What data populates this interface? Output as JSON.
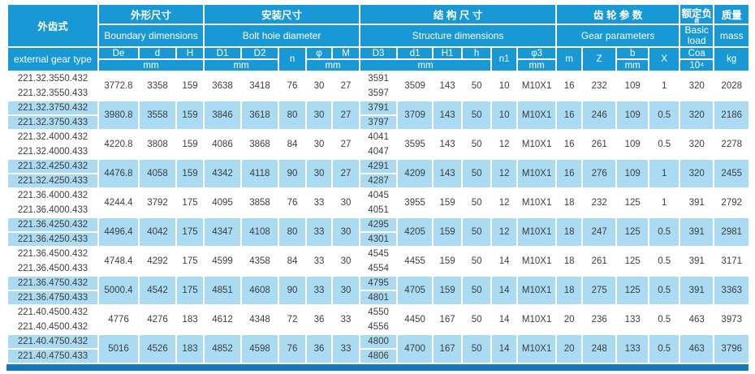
{
  "colors": {
    "header_blue": "#1899d6",
    "row_blue": "#abdbf2",
    "bottom_bar_blue": "#1478bb",
    "data_text": "#3d3d3d"
  },
  "header": {
    "type_zh": "外齿式",
    "type_en": "external gear type",
    "g_boundary_zh": "外形尺寸",
    "g_boundary_en": "Boundary dimensions",
    "g_bolt_zh": "安装尺寸",
    "g_bolt_en": "Bolt hole diameter",
    "g_structure_zh": "结 构 尺 寸",
    "g_structure_en": "Structure dimensions",
    "g_gear_zh": "齿 轮 参 数",
    "g_gear_en": "Gear parameters",
    "g_load_zh": "额定负",
    "g_load_zh2": "荷",
    "g_load_en": "Basic load",
    "g_mass_zh": "质量",
    "g_mass_en": "mass",
    "c_De": "De",
    "c_d": "d",
    "c_H": "H",
    "c_D1": "D1",
    "c_D2": "D2",
    "c_n": "n",
    "c_phi": "φ",
    "c_M": "M",
    "c_D3": "D3",
    "c_d1": "d1",
    "c_H1": "H1",
    "c_h": "h",
    "c_n1": "n1",
    "c_phi3": "φ3",
    "c_m": "m",
    "c_Z": "Z",
    "c_b": "b",
    "c_X": "X",
    "c_Coa": "Coa",
    "c_Coa_unit": "10⁴",
    "c_kg": "kg",
    "unit_mm": "mm"
  },
  "rows": [
    {
      "shaded": false,
      "types": [
        "221.32.3550.432",
        "221.32.3550.433"
      ],
      "De": "3772.8",
      "d": "3358",
      "H": "159",
      "D1": "3638",
      "D2": "3418",
      "n": "76",
      "phi": "30",
      "M": "27",
      "D3": [
        "3591",
        "3597"
      ],
      "d1": "3509",
      "H1": "143",
      "h": "50",
      "n1": "10",
      "phi3": "M10X1",
      "m": "16",
      "Z": "232",
      "b": "109",
      "X": "1",
      "Coa": "320",
      "kg": "2028"
    },
    {
      "shaded": true,
      "types": [
        "221.32.3750.432",
        "221.32.3750.433"
      ],
      "De": "3980.8",
      "d": "3558",
      "H": "159",
      "D1": "3846",
      "D2": "3618",
      "n": "80",
      "phi": "30",
      "M": "27",
      "D3": [
        "3791",
        "3797"
      ],
      "d1": "3709",
      "H1": "143",
      "h": "50",
      "n1": "10",
      "phi3": "M10X1",
      "m": "16",
      "Z": "246",
      "b": "109",
      "X": "0.5",
      "Coa": "320",
      "kg": "2186"
    },
    {
      "shaded": false,
      "types": [
        "221.32.4000.432",
        "221.32.4000.433"
      ],
      "De": "4220.8",
      "d": "3808",
      "H": "159",
      "D1": "4086",
      "D2": "3868",
      "n": "84",
      "phi": "30",
      "M": "27",
      "D3": [
        "4041",
        "4047"
      ],
      "d1": "3595",
      "H1": "143",
      "h": "50",
      "n1": "12",
      "phi3": "M10X1",
      "m": "16",
      "Z": "261",
      "b": "109",
      "X": "0.5",
      "Coa": "320",
      "kg": "2278"
    },
    {
      "shaded": true,
      "types": [
        "221.32.4250.432",
        "221.32.4250.433"
      ],
      "De": "4476.8",
      "d": "4058",
      "H": "159",
      "D1": "4342",
      "D2": "4118",
      "n": "90",
      "phi": "30",
      "M": "27",
      "D3": [
        "4291",
        "4287"
      ],
      "d1": "4209",
      "H1": "143",
      "h": "50",
      "n1": "12",
      "phi3": "M10X1",
      "m": "16",
      "Z": "276",
      "b": "109",
      "X": "1",
      "Coa": "320",
      "kg": "2455"
    },
    {
      "shaded": false,
      "types": [
        "221.36.4000.432",
        "221.36.4000.433"
      ],
      "De": "4244.4",
      "d": "3792",
      "H": "175",
      "D1": "4095",
      "D2": "3858",
      "n": "76",
      "phi": "33",
      "M": "30",
      "D3": [
        "4045",
        "4051"
      ],
      "d1": "3955",
      "H1": "159",
      "h": "50",
      "n1": "12",
      "phi3": "M10X1",
      "m": "18",
      "Z": "232",
      "b": "125",
      "X": "1",
      "Coa": "391",
      "kg": "2792"
    },
    {
      "shaded": true,
      "types": [
        "221.36.4250.432",
        "221.36.4250.433"
      ],
      "De": "4496.4",
      "d": "4042",
      "H": "175",
      "D1": "4347",
      "D2": "4108",
      "n": "80",
      "phi": "33",
      "M": "30",
      "D3": [
        "4295",
        "4301"
      ],
      "d1": "4205",
      "H1": "159",
      "h": "50",
      "n1": "12",
      "phi3": "M10X1",
      "m": "18",
      "Z": "247",
      "b": "125",
      "X": "0.5",
      "Coa": "391",
      "kg": "2981"
    },
    {
      "shaded": false,
      "types": [
        "221.36.4500.432",
        "221.36.4500.433"
      ],
      "De": "4748.4",
      "d": "4292",
      "H": "175",
      "D1": "4599",
      "D2": "4358",
      "n": "84",
      "phi": "33",
      "M": "30",
      "D3": [
        "4545",
        "4554"
      ],
      "d1": "4455",
      "H1": "159",
      "h": "50",
      "n1": "14",
      "phi3": "M10X1",
      "m": "18",
      "Z": "261",
      "b": "125",
      "X": "0.5",
      "Coa": "391",
      "kg": "3171"
    },
    {
      "shaded": true,
      "types": [
        "221.36.4750.432",
        "221.36.4750.433"
      ],
      "De": "5000.4",
      "d": "4542",
      "H": "175",
      "D1": "4851",
      "D2": "4608",
      "n": "90",
      "phi": "33",
      "M": "30",
      "D3": [
        "4795",
        "4801"
      ],
      "d1": "4705",
      "H1": "159",
      "h": "50",
      "n1": "14",
      "phi3": "M10X1",
      "m": "18",
      "Z": "275",
      "b": "125",
      "X": "0.5",
      "Coa": "391",
      "kg": "3363"
    },
    {
      "shaded": false,
      "types": [
        "221.40.4500.432",
        "221.40.4500.432"
      ],
      "De": "4776",
      "d": "4276",
      "H": "183",
      "D1": "4612",
      "D2": "4348",
      "n": "72",
      "phi": "36",
      "M": "33",
      "D3": [
        "4550",
        "4556"
      ],
      "d1": "4450",
      "H1": "167",
      "h": "50",
      "n1": "14",
      "phi3": "M10X1",
      "m": "20",
      "Z": "236",
      "b": "133",
      "X": "0.5",
      "Coa": "463",
      "kg": "3973"
    },
    {
      "shaded": true,
      "types": [
        "221.40.4750.432",
        "221.40.4750.433"
      ],
      "De": "5016",
      "d": "4526",
      "H": "183",
      "D1": "4852",
      "D2": "4598",
      "n": "76",
      "phi": "36",
      "M": "33",
      "D3": [
        "4800",
        "4806"
      ],
      "d1": "4700",
      "H1": "167",
      "h": "50",
      "n1": "14",
      "phi3": "M10X1",
      "m": "20",
      "Z": "248",
      "b": "133",
      "X": "0.5",
      "Coa": "463",
      "kg": "3796"
    }
  ]
}
